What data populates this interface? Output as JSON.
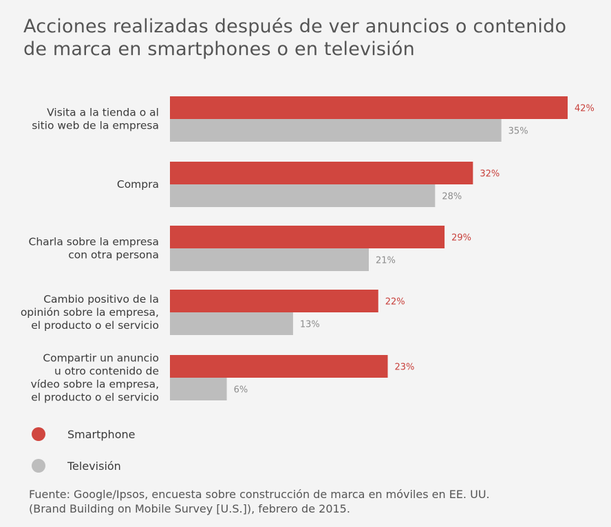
{
  "chart_data": {
    "type": "bar",
    "orientation": "horizontal",
    "title": "Acciones realizadas después de ver anuncios o contenido de marca en smartphones o en televisión",
    "categories": [
      [
        "Visita a la tienda o al",
        "sitio web de la empresa"
      ],
      [
        "Compra"
      ],
      [
        "Charla sobre la empresa",
        "con otra persona"
      ],
      [
        "Cambio positivo de la",
        "opinión sobre la empresa,",
        "el producto o el servicio"
      ],
      [
        "Compartir un anuncio",
        "u otro contenido de",
        "vídeo sobre la empresa,",
        "el producto o el servicio"
      ]
    ],
    "series": [
      {
        "name": "Smartphone",
        "color": "#d0463f",
        "values": [
          42,
          32,
          29,
          22,
          23
        ]
      },
      {
        "name": "Televisión",
        "color": "#bdbdbd",
        "values": [
          35,
          28,
          21,
          13,
          6
        ]
      }
    ],
    "value_suffix": "%",
    "xlim": [
      0,
      42
    ],
    "grid": false,
    "legend_position": "bottom-left"
  },
  "legend": {
    "items": [
      {
        "label": "Smartphone",
        "color": "#d0463f"
      },
      {
        "label": "Televisión",
        "color": "#bdbdbd"
      }
    ]
  },
  "source": {
    "line1": "Fuente: Google/Ipsos, encuesta sobre construcción de marca en móviles en EE. UU.",
    "line2": "(Brand Building on Mobile Survey [U.S.]), febrero de 2015."
  }
}
